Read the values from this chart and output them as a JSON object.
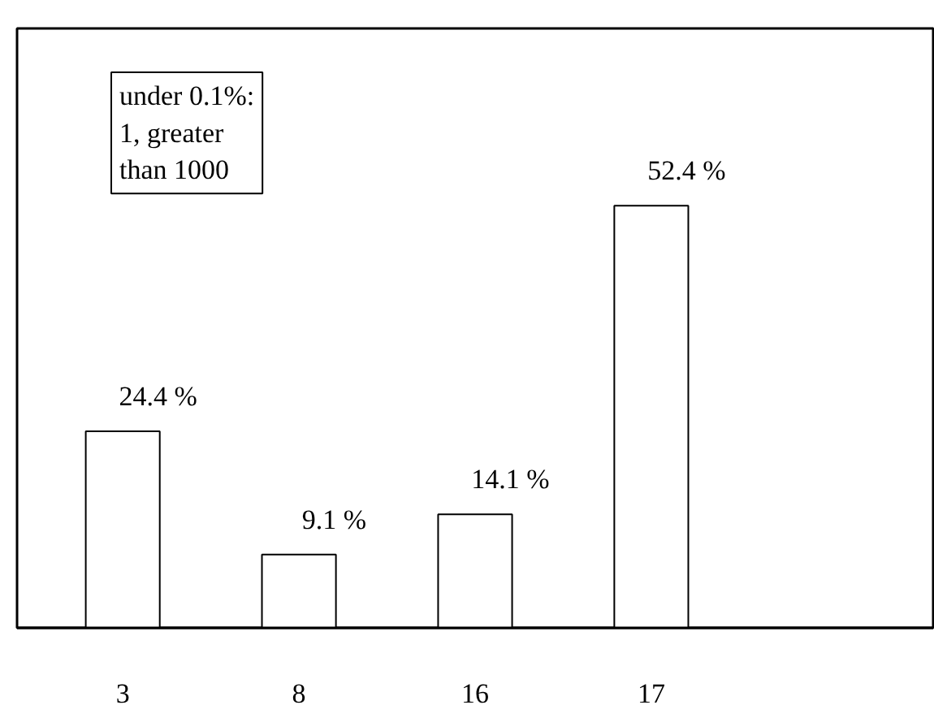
{
  "chart_data": {
    "type": "bar",
    "categories": [
      "3",
      "8",
      "16",
      "17"
    ],
    "values": [
      24.4,
      9.1,
      14.1,
      52.4
    ],
    "color": "#ffffff",
    "value_labels": [
      "24.4 %",
      "9.1 %",
      "14.1 %",
      "52.4 %"
    ],
    "annotations": [
      "under 0.1%:\n1, greater\n than 1000"
    ],
    "grid": false,
    "tick_labels": "x"
  }
}
